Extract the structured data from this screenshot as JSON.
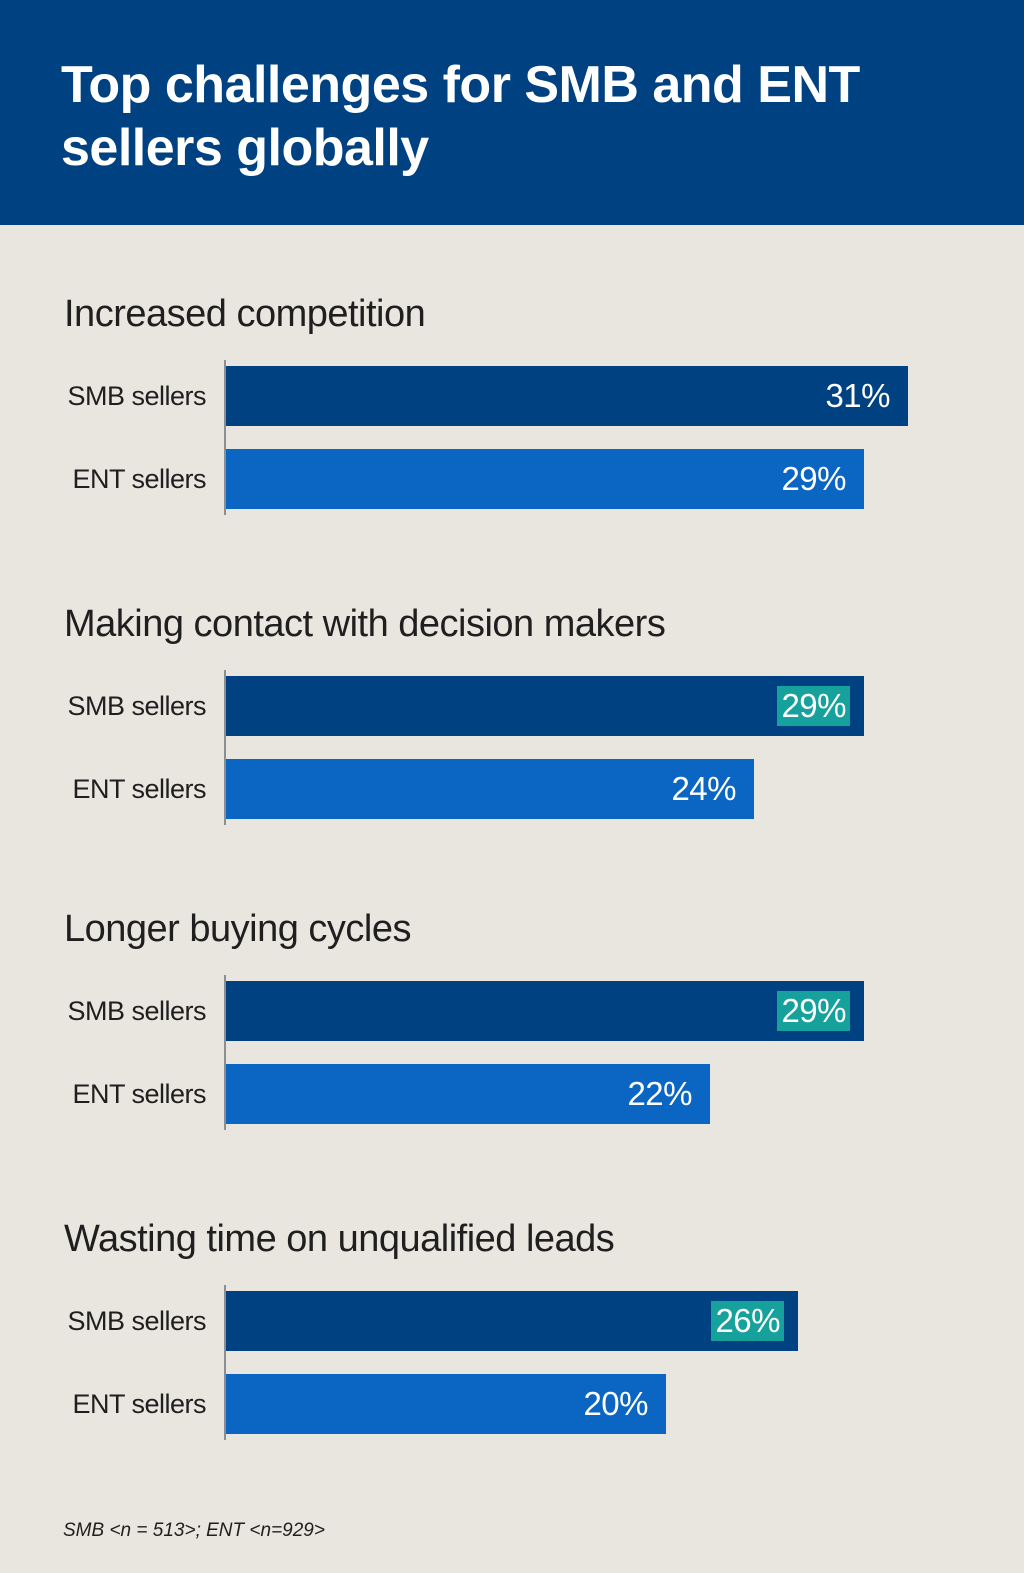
{
  "header": {
    "title": "Top challenges for SMB and ENT sellers globally"
  },
  "colors": {
    "smb_bar": "#004182",
    "ent_bar": "#0a66c2",
    "highlight": "#16a19c",
    "header_bg": "#004182",
    "page_bg": "#e9e5df"
  },
  "chart_data": {
    "type": "bar",
    "orientation": "horizontal",
    "title": "Top challenges for SMB and ENT sellers globally",
    "unit": "%",
    "xlim": [
      0,
      40
    ],
    "groups": [
      {
        "title": "Increased competition",
        "bars": [
          {
            "label": "SMB sellers",
            "value": 31,
            "text": "31%",
            "highlight": false
          },
          {
            "label": "ENT sellers",
            "value": 29,
            "text": "29%",
            "highlight": false
          }
        ]
      },
      {
        "title": "Making contact with decision makers",
        "bars": [
          {
            "label": "SMB sellers",
            "value": 29,
            "text": "29%",
            "highlight": true
          },
          {
            "label": "ENT sellers",
            "value": 24,
            "text": "24%",
            "highlight": false
          }
        ]
      },
      {
        "title": "Longer buying cycles",
        "bars": [
          {
            "label": "SMB sellers",
            "value": 29,
            "text": "29%",
            "highlight": true
          },
          {
            "label": "ENT sellers",
            "value": 22,
            "text": "22%",
            "highlight": false
          }
        ]
      },
      {
        "title": "Wasting time on unqualified leads",
        "bars": [
          {
            "label": "SMB sellers",
            "value": 26,
            "text": "26%",
            "highlight": true
          },
          {
            "label": "ENT sellers",
            "value": 20,
            "text": "20%",
            "highlight": false
          }
        ]
      }
    ]
  },
  "footnote": "SMB <n = 513>; ENT <n=929>"
}
